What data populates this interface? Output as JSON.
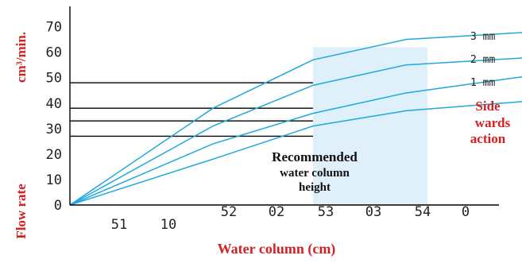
{
  "chart_data": {
    "type": "line",
    "xlabel": "Water column (cm)",
    "ylabel_top": "cm³/min.",
    "ylabel_bottom": "Flow rate",
    "x_tick_labels_lower": [
      "51",
      "10"
    ],
    "x_tick_labels_upper": [
      "52",
      "02",
      "53",
      "03",
      "54",
      "0"
    ],
    "y_ticks": [
      0,
      10,
      20,
      30,
      40,
      50,
      60,
      70
    ],
    "ylim": [
      0,
      78
    ],
    "xlim": [
      0,
      60
    ],
    "series": [
      {
        "name": "3 mm",
        "color": "#1fa8dc",
        "x": [
          0,
          20,
          34,
          47,
          65
        ],
        "y": [
          0,
          38,
          57,
          65,
          68
        ]
      },
      {
        "name": "2 mm",
        "color": "#1fa8dc",
        "x": [
          0,
          20,
          34,
          47,
          65
        ],
        "y": [
          0,
          31,
          47,
          55,
          58
        ]
      },
      {
        "name": "1 mm",
        "color": "#1fa8dc",
        "x": [
          0,
          20,
          34,
          47,
          65
        ],
        "y": [
          0,
          24,
          36,
          44,
          51
        ]
      },
      {
        "name": "",
        "color": "#1fa8dc",
        "x": [
          0,
          20,
          34,
          47,
          65
        ],
        "y": [
          0,
          18,
          31,
          37,
          41
        ]
      }
    ],
    "reference_lines": [
      48,
      38,
      33,
      27
    ],
    "recommended_region": {
      "x_start": 34,
      "x_end": 50,
      "y_start": 0,
      "y_end": 62,
      "color": "#dff0fb"
    },
    "annotations": {
      "recommended_lines": [
        "Recommended",
        "water column",
        "height"
      ],
      "side_lines": [
        "Side",
        "wards",
        "action"
      ]
    }
  }
}
